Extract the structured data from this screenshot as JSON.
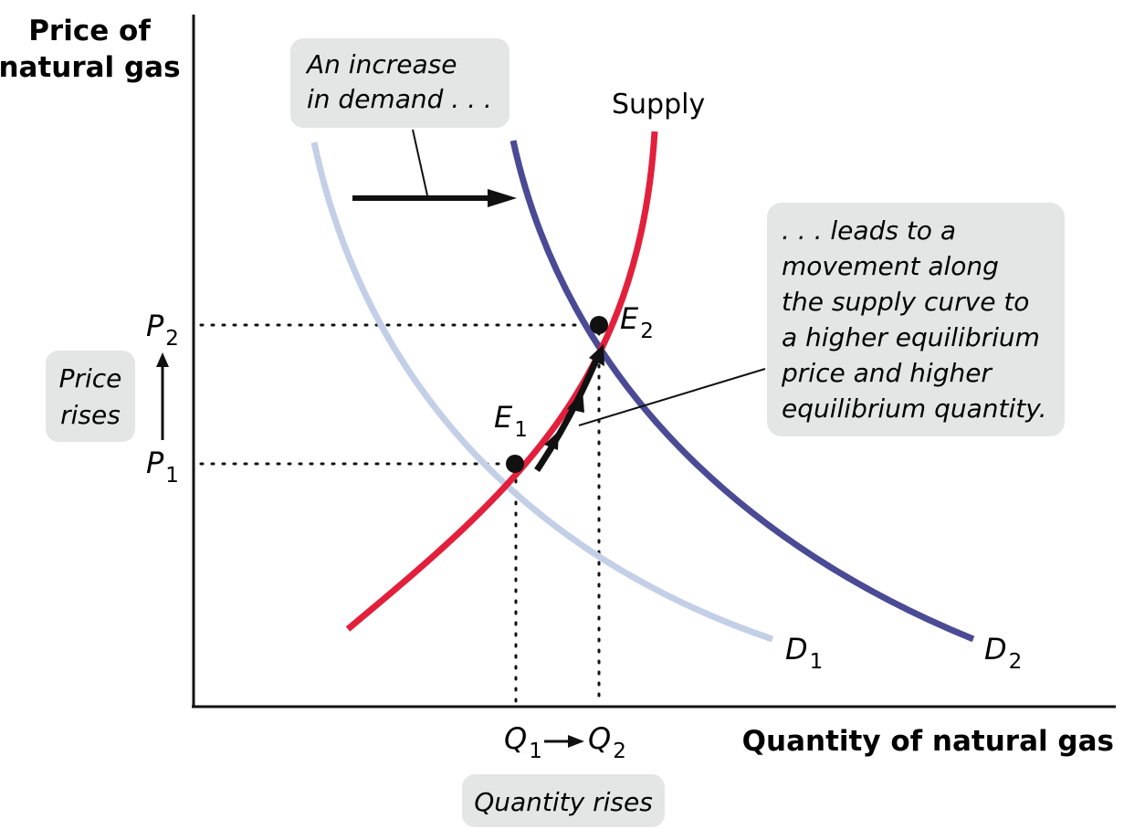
{
  "axes": {
    "y_title_line1": "Price of",
    "y_title_line2": "natural gas",
    "x_title": "Quantity of natural gas"
  },
  "curves": {
    "supply_label": "Supply",
    "d1": {
      "main": "D",
      "sub": "1"
    },
    "d2": {
      "main": "D",
      "sub": "2"
    }
  },
  "points": {
    "e1": {
      "main": "E",
      "sub": "1"
    },
    "e2": {
      "main": "E",
      "sub": "2"
    }
  },
  "price_levels": {
    "p1": {
      "main": "P",
      "sub": "1"
    },
    "p2": {
      "main": "P",
      "sub": "2"
    }
  },
  "quantity_levels": {
    "q1": {
      "main": "Q",
      "sub": "1"
    },
    "q2": {
      "main": "Q",
      "sub": "2"
    }
  },
  "callouts": {
    "demand_increase": [
      "An increase",
      "in demand . . ."
    ],
    "movement": [
      ". . . leads to a",
      "movement along",
      "the supply curve to",
      "a higher equilibrium",
      "price and higher",
      "equilibrium quantity."
    ],
    "price_rises": [
      "Price",
      "rises"
    ],
    "quantity_rises": "Quantity rises"
  },
  "colors": {
    "supply": "#e2203c",
    "d1": "#c3cfe6",
    "d2": "#4b4a95",
    "box": "#e3e6e4",
    "ink": "#111111"
  }
}
